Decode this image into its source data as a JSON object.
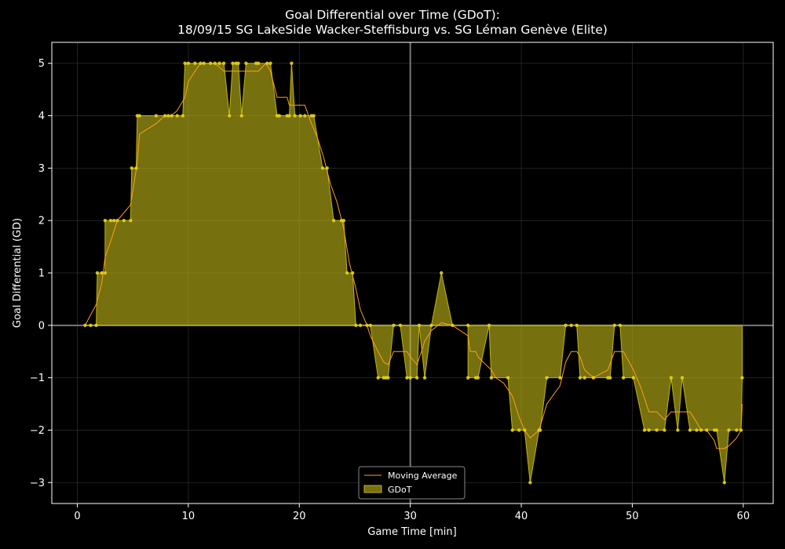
{
  "chart_data": {
    "type": "area",
    "title": "Goal Differential over Time (GDoT):",
    "subtitle": "18/09/15 SG LakeSide Wacker-Steffisburg  vs.  SG Léman Genève (Elite)",
    "xlabel": "Game Time [min]",
    "ylabel": "Goal Differential (GD)",
    "xlim": [
      -2.3,
      62.7
    ],
    "ylim": [
      -3.4,
      5.4
    ],
    "xticks": [
      0,
      10,
      20,
      30,
      40,
      50,
      60
    ],
    "yticks": [
      -3,
      -2,
      -1,
      0,
      1,
      2,
      3,
      4,
      5
    ],
    "grid": true,
    "vertical_reference_line": 30,
    "legend_position": "bottom-center",
    "series": [
      {
        "name": "GDoT",
        "kind": "area",
        "color": "#bfb517",
        "points": [
          [
            0.7,
            0
          ],
          [
            1.2,
            0
          ],
          [
            1.7,
            0
          ],
          [
            1.8,
            1
          ],
          [
            2.2,
            1
          ],
          [
            2.5,
            1
          ],
          [
            2.5,
            2
          ],
          [
            3.0,
            2
          ],
          [
            3.3,
            2
          ],
          [
            3.6,
            2
          ],
          [
            4.2,
            2
          ],
          [
            4.8,
            2
          ],
          [
            4.9,
            3
          ],
          [
            5.3,
            3
          ],
          [
            5.4,
            4
          ],
          [
            5.6,
            4
          ],
          [
            7.1,
            4
          ],
          [
            7.9,
            4
          ],
          [
            8.2,
            4
          ],
          [
            8.5,
            4
          ],
          [
            9.0,
            4
          ],
          [
            9.5,
            4
          ],
          [
            9.7,
            5
          ],
          [
            10.0,
            5
          ],
          [
            10.6,
            5
          ],
          [
            11.1,
            5
          ],
          [
            11.4,
            5
          ],
          [
            12.0,
            5
          ],
          [
            12.4,
            5
          ],
          [
            12.8,
            5
          ],
          [
            13.2,
            5
          ],
          [
            13.7,
            4
          ],
          [
            14.0,
            5
          ],
          [
            14.3,
            5
          ],
          [
            14.5,
            5
          ],
          [
            14.8,
            4
          ],
          [
            15.2,
            5
          ],
          [
            16.1,
            5
          ],
          [
            16.3,
            5
          ],
          [
            17.1,
            5
          ],
          [
            17.4,
            5
          ],
          [
            18.0,
            4
          ],
          [
            18.2,
            4
          ],
          [
            18.9,
            4
          ],
          [
            19.1,
            4
          ],
          [
            19.3,
            5
          ],
          [
            19.6,
            4
          ],
          [
            20.1,
            4
          ],
          [
            20.5,
            4
          ],
          [
            21.1,
            4
          ],
          [
            21.3,
            4
          ],
          [
            22.1,
            3
          ],
          [
            22.5,
            3
          ],
          [
            23.1,
            2
          ],
          [
            23.8,
            2
          ],
          [
            24.0,
            2
          ],
          [
            24.3,
            1
          ],
          [
            24.8,
            1
          ],
          [
            25.1,
            0
          ],
          [
            25.5,
            0
          ],
          [
            26.1,
            0
          ],
          [
            26.4,
            0
          ],
          [
            27.1,
            -1
          ],
          [
            27.6,
            -1
          ],
          [
            27.8,
            -1
          ],
          [
            28.0,
            -1
          ],
          [
            28.5,
            0
          ],
          [
            29.1,
            0
          ],
          [
            29.7,
            -1
          ],
          [
            30.0,
            -1
          ],
          [
            30.6,
            -1
          ],
          [
            30.8,
            0
          ],
          [
            31.3,
            -1
          ],
          [
            31.9,
            0
          ],
          [
            32.8,
            1
          ],
          [
            33.8,
            0
          ],
          [
            35.2,
            0
          ],
          [
            35.2,
            -1
          ],
          [
            35.9,
            -1
          ],
          [
            36.1,
            -1
          ],
          [
            37.1,
            0
          ],
          [
            37.3,
            -1
          ],
          [
            38.8,
            -1
          ],
          [
            39.2,
            -2
          ],
          [
            39.8,
            -2
          ],
          [
            40.3,
            -2
          ],
          [
            40.8,
            -3
          ],
          [
            41.6,
            -2
          ],
          [
            41.7,
            -2
          ],
          [
            42.3,
            -1
          ],
          [
            43.5,
            -1
          ],
          [
            44.0,
            0
          ],
          [
            44.5,
            0
          ],
          [
            45.0,
            0
          ],
          [
            45.3,
            -1
          ],
          [
            45.7,
            -1
          ],
          [
            46.5,
            -1
          ],
          [
            47.8,
            -1
          ],
          [
            48.0,
            -1
          ],
          [
            48.4,
            0
          ],
          [
            48.9,
            0
          ],
          [
            49.2,
            -1
          ],
          [
            50.1,
            -1
          ],
          [
            51.1,
            -2
          ],
          [
            51.5,
            -2
          ],
          [
            52.2,
            -2
          ],
          [
            52.9,
            -2
          ],
          [
            53.5,
            -1
          ],
          [
            54.1,
            -2
          ],
          [
            54.5,
            -1
          ],
          [
            55.2,
            -2
          ],
          [
            55.8,
            -2
          ],
          [
            56.2,
            -2
          ],
          [
            56.7,
            -2
          ],
          [
            57.4,
            -2
          ],
          [
            57.6,
            -2
          ],
          [
            58.3,
            -3
          ],
          [
            58.7,
            -2
          ],
          [
            59.4,
            -2
          ],
          [
            59.8,
            -2
          ],
          [
            59.9,
            -1
          ]
        ]
      },
      {
        "name": "Moving Average",
        "kind": "line",
        "color": "#ff9f1a",
        "points": [
          [
            0.7,
            0
          ],
          [
            1.2,
            0.2
          ],
          [
            1.7,
            0.4
          ],
          [
            2.2,
            0.8
          ],
          [
            2.5,
            1.3
          ],
          [
            3.0,
            1.6
          ],
          [
            3.6,
            2.0
          ],
          [
            4.2,
            2.15
          ],
          [
            4.8,
            2.3
          ],
          [
            5.4,
            3.1
          ],
          [
            5.6,
            3.65
          ],
          [
            7.1,
            3.85
          ],
          [
            7.9,
            4.0
          ],
          [
            8.5,
            4.0
          ],
          [
            9.0,
            4.1
          ],
          [
            9.7,
            4.35
          ],
          [
            10.0,
            4.65
          ],
          [
            10.6,
            4.85
          ],
          [
            11.1,
            5.0
          ],
          [
            12.4,
            5.0
          ],
          [
            13.2,
            4.85
          ],
          [
            14.3,
            4.85
          ],
          [
            15.2,
            4.85
          ],
          [
            16.3,
            4.85
          ],
          [
            17.0,
            5.0
          ],
          [
            17.4,
            4.85
          ],
          [
            18.0,
            4.35
          ],
          [
            18.9,
            4.35
          ],
          [
            19.1,
            4.2
          ],
          [
            20.5,
            4.2
          ],
          [
            21.0,
            3.9
          ],
          [
            21.6,
            3.6
          ],
          [
            22.2,
            3.2
          ],
          [
            22.8,
            2.7
          ],
          [
            23.4,
            2.35
          ],
          [
            24.0,
            1.85
          ],
          [
            24.5,
            1.2
          ],
          [
            25.1,
            0.7
          ],
          [
            25.5,
            0.3
          ],
          [
            26.1,
            0
          ],
          [
            26.4,
            -0.2
          ],
          [
            27.1,
            -0.5
          ],
          [
            27.6,
            -0.7
          ],
          [
            28.0,
            -0.75
          ],
          [
            28.5,
            -0.5
          ],
          [
            29.1,
            -0.5
          ],
          [
            29.7,
            -0.5
          ],
          [
            30.0,
            -0.6
          ],
          [
            30.6,
            -0.75
          ],
          [
            31.0,
            -0.5
          ],
          [
            31.3,
            -0.3
          ],
          [
            31.9,
            -0.1
          ],
          [
            32.8,
            0.05
          ],
          [
            33.8,
            0
          ],
          [
            35.2,
            -0.2
          ],
          [
            35.4,
            -0.5
          ],
          [
            35.9,
            -0.5
          ],
          [
            36.1,
            -0.6
          ],
          [
            36.8,
            -0.75
          ],
          [
            37.3,
            -0.85
          ],
          [
            37.7,
            -1.0
          ],
          [
            38.4,
            -1.1
          ],
          [
            39.2,
            -1.35
          ],
          [
            39.8,
            -1.75
          ],
          [
            40.3,
            -2.0
          ],
          [
            40.8,
            -2.15
          ],
          [
            41.6,
            -2.0
          ],
          [
            42.3,
            -1.5
          ],
          [
            43.5,
            -1.15
          ],
          [
            44.0,
            -0.7
          ],
          [
            44.5,
            -0.5
          ],
          [
            45.0,
            -0.5
          ],
          [
            45.3,
            -0.6
          ],
          [
            45.7,
            -0.85
          ],
          [
            46.5,
            -1.0
          ],
          [
            47.8,
            -0.85
          ],
          [
            48.4,
            -0.5
          ],
          [
            49.2,
            -0.5
          ],
          [
            50.1,
            -0.85
          ],
          [
            50.8,
            -1.2
          ],
          [
            51.5,
            -1.65
          ],
          [
            52.2,
            -1.65
          ],
          [
            52.9,
            -1.8
          ],
          [
            53.5,
            -1.65
          ],
          [
            54.1,
            -1.65
          ],
          [
            54.5,
            -1.65
          ],
          [
            55.2,
            -1.65
          ],
          [
            55.8,
            -1.85
          ],
          [
            56.2,
            -2.0
          ],
          [
            56.7,
            -2.0
          ],
          [
            57.4,
            -2.2
          ],
          [
            57.6,
            -2.35
          ],
          [
            58.3,
            -2.35
          ],
          [
            58.7,
            -2.3
          ],
          [
            59.4,
            -2.15
          ],
          [
            59.8,
            -2.0
          ],
          [
            59.9,
            -1.5
          ]
        ]
      }
    ]
  }
}
